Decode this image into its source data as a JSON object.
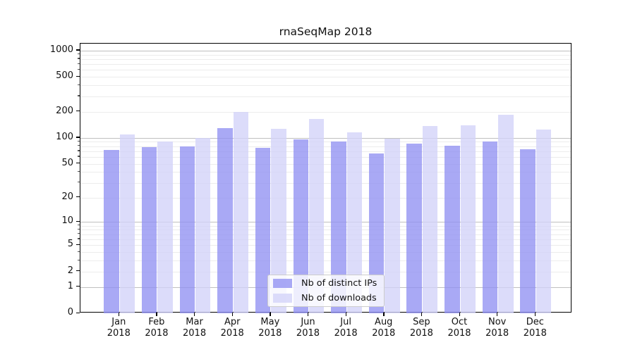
{
  "title": "rnaSeqMap 2018",
  "legend": {
    "items": [
      {
        "label": "Nb of distinct IPs"
      },
      {
        "label": "Nb of downloads"
      }
    ]
  },
  "chart_data": {
    "type": "bar",
    "title": "rnaSeqMap 2018",
    "categories": [
      "Jan",
      "Feb",
      "Mar",
      "Apr",
      "May",
      "Jun",
      "Jul",
      "Aug",
      "Sep",
      "Oct",
      "Nov",
      "Dec"
    ],
    "x_year_label": "2018",
    "series": [
      {
        "name": "Nb of distinct IPs",
        "color": "#9191f2",
        "opacity": 0.78,
        "values": [
          72,
          78,
          80,
          130,
          76,
          95,
          90,
          66,
          86,
          81,
          90,
          74
        ]
      },
      {
        "name": "Nb of downloads",
        "color": "#d2d2f8",
        "opacity": 0.78,
        "values": [
          110,
          90,
          100,
          200,
          127,
          165,
          116,
          98,
          137,
          139,
          185,
          125
        ]
      }
    ],
    "yscale": "log1p",
    "yticks": [
      0,
      1,
      2,
      5,
      10,
      20,
      50,
      100,
      200,
      500,
      1000
    ],
    "ylim": [
      0,
      1200
    ],
    "xlabel": "",
    "ylabel": "",
    "grid": true,
    "legend_position": "lower-center"
  }
}
